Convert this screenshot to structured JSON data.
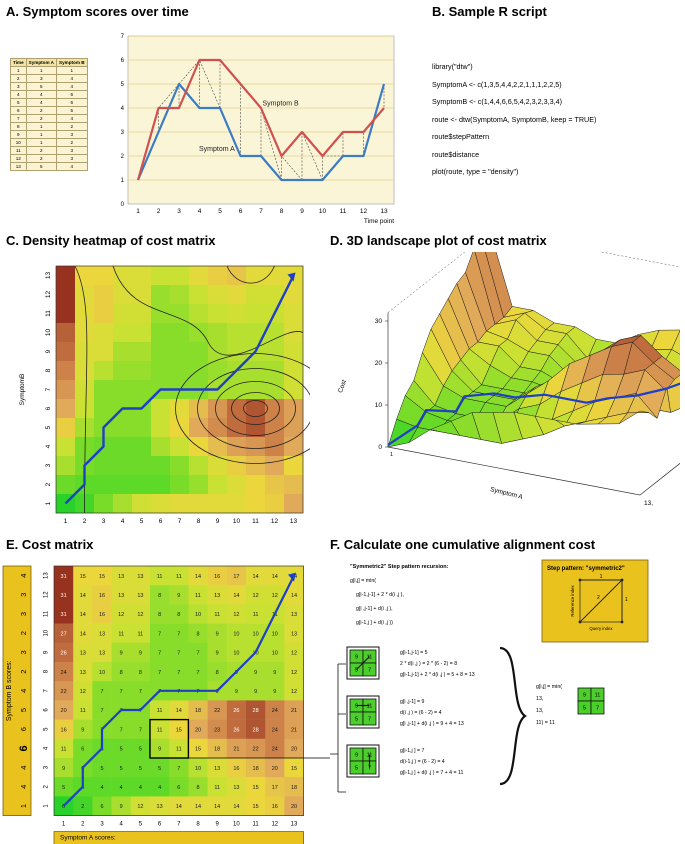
{
  "panels": {
    "A": "A. Symptom scores over time",
    "B": "B. Sample R script",
    "C": "C. Density heatmap of cost matrix",
    "D": "D. 3D landscape plot of cost matrix",
    "E": "E. Cost matrix",
    "F": "F. Calculate one cumulative alignment cost"
  },
  "table": {
    "headers": [
      "Time",
      "Symptom A",
      "Symptom B"
    ],
    "time": [
      1,
      2,
      3,
      4,
      5,
      6,
      7,
      8,
      9,
      10,
      11,
      12,
      13
    ]
  },
  "chart_data": {
    "type": "line",
    "x": [
      1,
      2,
      3,
      4,
      5,
      6,
      7,
      8,
      9,
      10,
      11,
      12,
      13
    ],
    "series": [
      {
        "name": "Symptom A",
        "values": [
          1,
          3,
          5,
          4,
          4,
          2,
          2,
          1,
          1,
          1,
          2,
          2,
          5
        ],
        "color": "#3b7cc4"
      },
      {
        "name": "Symptom B",
        "values": [
          1,
          4,
          4,
          6,
          6,
          5,
          4,
          2,
          3,
          2,
          3,
          3,
          4
        ],
        "color": "#d05050"
      }
    ],
    "xlabel": "Time point",
    "ylim": [
      0,
      7
    ],
    "yticks": [
      "0",
      "1",
      "2",
      "3",
      "4",
      "5",
      "6",
      "7"
    ],
    "grid": true
  },
  "rscript": [
    "library(\"dtw\")",
    "SymptomA <- c(1,3,5,4,4,2,2,1,1,1,2,2,5)",
    "SymptomB <- c(1,4,4,6,6,5,4,2,3,2,3,3,4)",
    "route <- dtw(SymptomA, SymptomB, keep = TRUE)",
    "route$stepPattern",
    "route$distance",
    "plot(route, type = \"density\")"
  ],
  "heatmap": {
    "xlabel": "Symptom A",
    "ylabel": "SymptomB",
    "ticks": [
      1,
      2,
      3,
      4,
      5,
      6,
      7,
      8,
      9,
      10,
      11,
      12,
      13
    ]
  },
  "landscape": {
    "xlabel": "Symptom A",
    "ylabel": "Symptom B",
    "zlabel": "Cost",
    "zticks": [
      "0",
      "10",
      "20",
      "30"
    ],
    "corner_label": "13",
    "corner_label2": "13,",
    "origin": "1"
  },
  "cost_matrix": {
    "rows_top_to_bottom": [
      [
        31,
        15,
        15,
        13,
        13,
        11,
        11,
        14,
        16,
        17,
        14,
        14,
        14
      ],
      [
        31,
        14,
        16,
        13,
        13,
        8,
        9,
        11,
        13,
        14,
        12,
        12,
        14
      ],
      [
        31,
        14,
        16,
        12,
        12,
        8,
        8,
        10,
        11,
        12,
        11,
        11,
        13
      ],
      [
        27,
        14,
        13,
        11,
        11,
        7,
        7,
        8,
        9,
        10,
        10,
        10,
        13
      ],
      [
        26,
        13,
        13,
        9,
        9,
        7,
        7,
        7,
        9,
        10,
        10,
        10,
        12
      ],
      [
        24,
        13,
        10,
        8,
        8,
        7,
        7,
        7,
        8,
        9,
        9,
        9,
        12
      ],
      [
        22,
        12,
        7,
        7,
        7,
        7,
        7,
        7,
        9,
        9,
        9,
        9,
        12
      ],
      [
        20,
        11,
        7,
        7,
        7,
        11,
        14,
        18,
        22,
        26,
        28,
        24,
        21
      ],
      [
        16,
        9,
        7,
        7,
        7,
        11,
        15,
        20,
        23,
        26,
        28,
        24,
        21
      ],
      [
        11,
        6,
        5,
        5,
        5,
        9,
        11,
        15,
        18,
        21,
        22,
        24,
        20
      ],
      [
        9,
        6,
        5,
        5,
        5,
        5,
        7,
        10,
        13,
        16,
        18,
        20,
        15
      ],
      [
        5,
        4,
        4,
        4,
        4,
        4,
        6,
        8,
        11,
        13,
        15,
        17,
        18
      ],
      [
        0,
        2,
        6,
        9,
        12,
        13,
        14,
        14,
        14,
        14,
        15,
        16,
        20
      ]
    ],
    "a_scores_label": "Symptom A scores:",
    "a_scores": [
      "1",
      "3",
      "5",
      "4",
      "4",
      "2",
      "2",
      "1",
      "1",
      "1",
      "2",
      "2",
      "5"
    ],
    "b_scores_label": "Symptom B scores:",
    "b_scores_top_to_bottom": [
      "4",
      "3",
      "3",
      "2",
      "3",
      "2",
      "4",
      "5",
      "6",
      "6",
      "4",
      "4",
      "1"
    ],
    "col_ticks": [
      1,
      2,
      3,
      4,
      5,
      6,
      7,
      8,
      9,
      10,
      11,
      12,
      13
    ],
    "row_ticks_top_to_bottom": [
      13,
      12,
      11,
      10,
      9,
      8,
      7,
      6,
      5,
      4,
      3,
      2,
      1
    ]
  },
  "calc": {
    "recursion_title": "\"Symmetric2\" Step pattern recursion:",
    "recursion_lines": [
      "g[i,j] = min(",
      "g[i-1,j-1] + 2 * d(i ,j ),",
      "g[i ,j-1] + d(i ,j ),",
      "g[i-1,j ] + d(i ,j ))"
    ],
    "step_title": "Step pattern: \"symmetric2\"",
    "step_ylabel": "Reference index",
    "step_xlabel": "Query index",
    "step_weight_diag": "2",
    "step_weight_1": "1",
    "case1_cells": [
      "9",
      "11",
      "5",
      "7"
    ],
    "case2_cells": [
      "9",
      "11",
      "5",
      "7"
    ],
    "case3_cells": [
      "9",
      "11",
      "5",
      "7"
    ],
    "case1": [
      "g[i-1,j-1] = 5",
      "2 * d(i ,j ) = 2 * (6 - 2) = 8",
      "g[i-1,j-1] + 2 * d(i ,j ) = 5 + 8 = 13"
    ],
    "case2": [
      "g[i ,j-1] = 9",
      "d(i ,j ) = (6 - 2) = 4",
      "g[i ,j-1] + d(i ,j ) = 9 + 4 = 13"
    ],
    "case3": [
      "g[i-1,j ] = 7",
      "d(i-1,j ) = (6 - 2) = 4",
      "g[i-1,j ] + d(i ,j ) = 7 + 4 = 11"
    ],
    "result": [
      "g[i,j] = min(",
      "13,",
      "13,",
      "11) = 11"
    ],
    "result_cells": [
      "9",
      "11",
      "5",
      "7"
    ]
  }
}
